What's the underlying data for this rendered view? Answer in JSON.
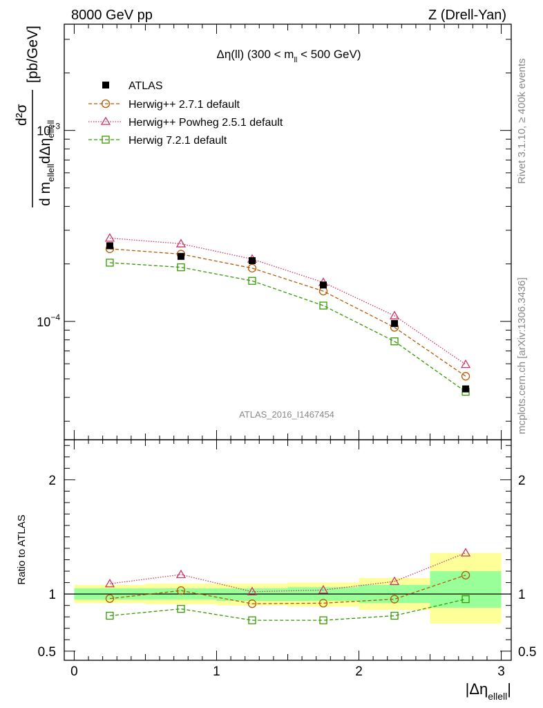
{
  "header": {
    "left": "8000 GeV pp",
    "right": "Z (Drell-Yan)"
  },
  "side_text": {
    "top": "Rivet 3.1.10, ≥ 400k events",
    "bottom": "mcplots.cern.ch [arXiv:1306.3436]"
  },
  "watermark": "ATLAS_2016_I1467454",
  "chart_data": [
    {
      "type": "line",
      "panel": "main",
      "title": "Δη(ll) (300 < m_ll < 500 GeV)",
      "title_parts": {
        "main": "Δη(ll) (300 < m",
        "sub": "ll",
        "tail": " < 500 GeV)"
      },
      "ylabel": "d²σ / d m_ellell dΔη_ellell [pb/GeV]",
      "ylabel_parts": {
        "num": "d²σ",
        "den_d": "d m",
        "den_sub1": "ellell",
        "den_mid": "dΔη",
        "den_sub2": "ellell",
        "unit": "[pb/GeV]"
      },
      "yscale": "log",
      "ylim": [
        2.4e-05,
        0.0036
      ],
      "xlim": [
        -0.07,
        3.07
      ],
      "y_ticks": [
        {
          "value": 0.0001,
          "base": "10",
          "exp": "−4"
        },
        {
          "value": 0.001,
          "base": "10",
          "exp": "−3"
        }
      ],
      "x": [
        0.25,
        0.75,
        1.25,
        1.75,
        2.25,
        2.75
      ],
      "series": [
        {
          "name": "ATLAS",
          "style": "data",
          "color": "#000000",
          "values": [
            0.000249,
            0.000219,
            0.000208,
            0.000155,
            9.75e-05,
            4.43e-05
          ]
        },
        {
          "name": "Herwig++ 2.7.1 default",
          "style": "dashed",
          "marker": "circle",
          "color": "#b35900",
          "values": [
            0.00024,
            0.000225,
            0.00019,
            0.000144,
            9.3e-05,
            5.16e-05
          ]
        },
        {
          "name": "Herwig++ Powheg 2.5.1 default",
          "style": "dotted",
          "marker": "triangle",
          "color": "#cc3366",
          "values": [
            0.000273,
            0.000255,
            0.000212,
            0.00016,
            0.000107,
            5.95e-05
          ]
        },
        {
          "name": "Herwig 7.2.1 default",
          "style": "dashed",
          "marker": "square",
          "color": "#339900",
          "values": [
            0.000203,
            0.000192,
            0.000163,
            0.000121,
            7.86e-05,
            4.28e-05
          ]
        }
      ],
      "legend_position": "top-left"
    },
    {
      "type": "line",
      "panel": "ratio",
      "ylabel": "Ratio to ATLAS",
      "xlabel": "|Δη_ellell|",
      "xlabel_parts": {
        "main": "|Δη",
        "sub": "ellell",
        "tail": "|"
      },
      "ylim": [
        0.42,
        2.35
      ],
      "xlim": [
        -0.07,
        3.07
      ],
      "y_tick_labels": [
        {
          "value": 0.5,
          "label": "0.5"
        },
        {
          "value": 1,
          "label": "1"
        },
        {
          "value": 2,
          "label": "2"
        }
      ],
      "x_tick_labels": [
        {
          "value": 0,
          "label": "0"
        },
        {
          "value": 1,
          "label": "1"
        },
        {
          "value": 2,
          "label": "2"
        },
        {
          "value": 3,
          "label": "3"
        }
      ],
      "bins": [
        [
          0,
          0.5
        ],
        [
          0.5,
          1
        ],
        [
          1,
          1.5
        ],
        [
          1.5,
          2
        ],
        [
          2,
          2.5
        ],
        [
          2.5,
          3
        ]
      ],
      "band_yellow": [
        [
          0.92,
          1.08
        ],
        [
          0.91,
          1.09
        ],
        [
          0.9,
          1.09
        ],
        [
          0.89,
          1.1
        ],
        [
          0.86,
          1.14
        ],
        [
          0.74,
          1.36
        ]
      ],
      "band_green": [
        [
          0.95,
          1.05
        ],
        [
          0.95,
          1.05
        ],
        [
          0.94,
          1.05
        ],
        [
          0.94,
          1.06
        ],
        [
          0.92,
          1.08
        ],
        [
          0.88,
          1.2
        ]
      ],
      "band_colors": {
        "yellow": "#ffff99",
        "green": "#99ff99"
      },
      "x": [
        0.25,
        0.75,
        1.25,
        1.75,
        2.25,
        2.75
      ],
      "series": [
        {
          "name": "Herwig++ 2.7.1 default",
          "style": "dashed",
          "marker": "circle",
          "color": "#b35900",
          "values": [
            0.96,
            1.03,
            0.915,
            0.92,
            0.955,
            1.165
          ]
        },
        {
          "name": "Herwig++ Powheg 2.5.1 default",
          "style": "dotted",
          "marker": "triangle",
          "color": "#cc3366",
          "values": [
            1.09,
            1.17,
            1.02,
            1.035,
            1.11,
            1.36
          ]
        },
        {
          "name": "Herwig 7.2.1 default",
          "style": "dashed",
          "marker": "square",
          "color": "#339900",
          "values": [
            0.81,
            0.87,
            0.77,
            0.77,
            0.81,
            0.955
          ]
        }
      ]
    }
  ]
}
